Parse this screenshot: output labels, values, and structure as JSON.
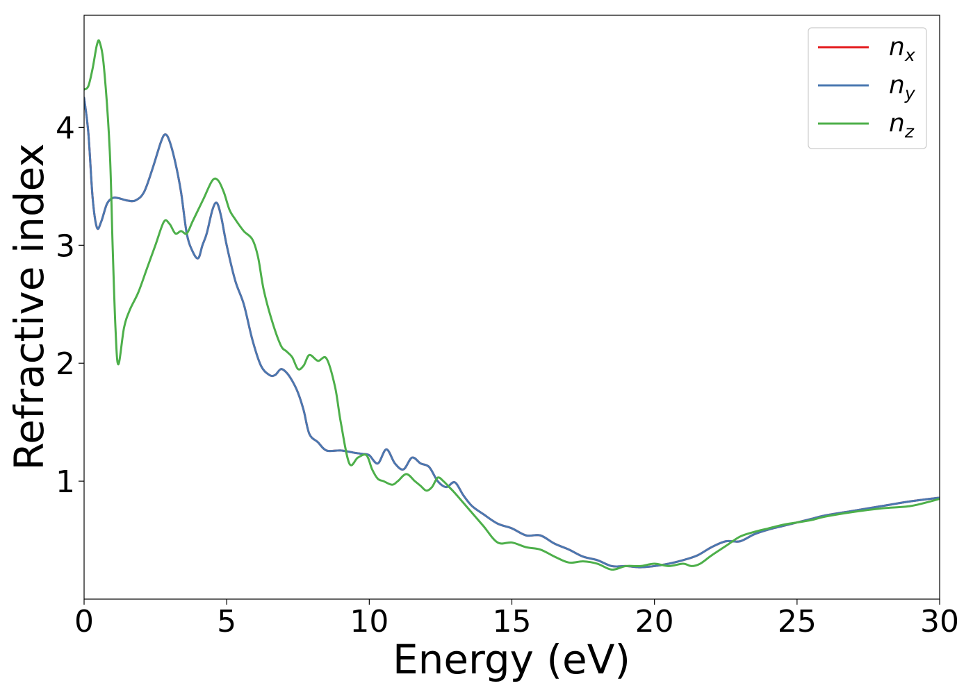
{
  "chart_data": {
    "type": "line",
    "title": "",
    "xlabel": "Energy (eV)",
    "ylabel": "Refractive index",
    "xlim": [
      0,
      30
    ],
    "ylim": [
      0.0,
      4.95
    ],
    "xticks": [
      0,
      5,
      10,
      15,
      20,
      25,
      30
    ],
    "xtick_labels": [
      "0",
      "5",
      "10",
      "15",
      "20",
      "25",
      "30"
    ],
    "yticks": [
      1,
      2,
      3,
      4
    ],
    "ytick_labels": [
      "1",
      "2",
      "3",
      "4"
    ],
    "grid": false,
    "legend_position": "top-right",
    "series": [
      {
        "name": "n_x",
        "legend_main": "n",
        "legend_sub": "x",
        "color": "#e41a1c",
        "x": [
          0,
          0.15,
          0.3,
          0.45,
          0.6,
          0.8,
          1.0,
          1.2,
          1.5,
          1.8,
          2.1,
          2.4,
          2.7,
          2.85,
          3.0,
          3.2,
          3.4,
          3.6,
          3.8,
          4.0,
          4.15,
          4.3,
          4.5,
          4.65,
          4.8,
          5.0,
          5.3,
          5.6,
          5.9,
          6.2,
          6.5,
          6.7,
          6.9,
          7.1,
          7.3,
          7.5,
          7.7,
          7.9,
          8.2,
          8.5,
          9.0,
          9.5,
          9.8,
          10.0,
          10.3,
          10.6,
          10.9,
          11.2,
          11.5,
          11.8,
          12.1,
          12.4,
          12.7,
          13.0,
          13.3,
          13.6,
          14.0,
          14.5,
          15.0,
          15.5,
          16.0,
          16.5,
          17.0,
          17.5,
          18.0,
          18.5,
          19.0,
          19.5,
          20.0,
          20.5,
          21.0,
          21.5,
          22.0,
          22.5,
          23.0,
          23.5,
          24.0,
          24.5,
          25.0,
          25.5,
          26.0,
          27.0,
          28.0,
          29.0,
          30.0
        ],
        "y": [
          4.25,
          3.95,
          3.4,
          3.15,
          3.2,
          3.35,
          3.4,
          3.4,
          3.38,
          3.38,
          3.45,
          3.65,
          3.88,
          3.94,
          3.88,
          3.7,
          3.45,
          3.1,
          2.95,
          2.89,
          3.0,
          3.1,
          3.3,
          3.36,
          3.25,
          3.0,
          2.7,
          2.5,
          2.2,
          1.98,
          1.9,
          1.9,
          1.95,
          1.92,
          1.85,
          1.75,
          1.6,
          1.4,
          1.33,
          1.26,
          1.26,
          1.24,
          1.23,
          1.22,
          1.15,
          1.27,
          1.15,
          1.1,
          1.2,
          1.15,
          1.12,
          1.0,
          0.95,
          0.99,
          0.88,
          0.79,
          0.72,
          0.64,
          0.6,
          0.54,
          0.54,
          0.47,
          0.42,
          0.36,
          0.33,
          0.28,
          0.28,
          0.27,
          0.28,
          0.3,
          0.33,
          0.37,
          0.44,
          0.49,
          0.49,
          0.55,
          0.59,
          0.62,
          0.65,
          0.68,
          0.71,
          0.75,
          0.79,
          0.83,
          0.86
        ]
      },
      {
        "name": "n_y",
        "legend_main": "n",
        "legend_sub": "y",
        "color": "#4a78b0",
        "x": [
          0,
          0.15,
          0.3,
          0.45,
          0.6,
          0.8,
          1.0,
          1.2,
          1.5,
          1.8,
          2.1,
          2.4,
          2.7,
          2.85,
          3.0,
          3.2,
          3.4,
          3.6,
          3.8,
          4.0,
          4.15,
          4.3,
          4.5,
          4.65,
          4.8,
          5.0,
          5.3,
          5.6,
          5.9,
          6.2,
          6.5,
          6.7,
          6.9,
          7.1,
          7.3,
          7.5,
          7.7,
          7.9,
          8.2,
          8.5,
          9.0,
          9.5,
          9.8,
          10.0,
          10.3,
          10.6,
          10.9,
          11.2,
          11.5,
          11.8,
          12.1,
          12.4,
          12.7,
          13.0,
          13.3,
          13.6,
          14.0,
          14.5,
          15.0,
          15.5,
          16.0,
          16.5,
          17.0,
          17.5,
          18.0,
          18.5,
          19.0,
          19.5,
          20.0,
          20.5,
          21.0,
          21.5,
          22.0,
          22.5,
          23.0,
          23.5,
          24.0,
          24.5,
          25.0,
          25.5,
          26.0,
          27.0,
          28.0,
          29.0,
          30.0
        ],
        "y": [
          4.25,
          3.95,
          3.4,
          3.15,
          3.2,
          3.35,
          3.4,
          3.4,
          3.38,
          3.38,
          3.45,
          3.65,
          3.88,
          3.94,
          3.88,
          3.7,
          3.45,
          3.1,
          2.95,
          2.89,
          3.0,
          3.1,
          3.3,
          3.36,
          3.25,
          3.0,
          2.7,
          2.5,
          2.2,
          1.98,
          1.9,
          1.9,
          1.95,
          1.92,
          1.85,
          1.75,
          1.6,
          1.4,
          1.33,
          1.26,
          1.26,
          1.24,
          1.23,
          1.22,
          1.15,
          1.27,
          1.15,
          1.1,
          1.2,
          1.15,
          1.12,
          1.0,
          0.95,
          0.99,
          0.88,
          0.79,
          0.72,
          0.64,
          0.6,
          0.54,
          0.54,
          0.47,
          0.42,
          0.36,
          0.33,
          0.28,
          0.28,
          0.27,
          0.28,
          0.3,
          0.33,
          0.37,
          0.44,
          0.49,
          0.49,
          0.55,
          0.59,
          0.62,
          0.65,
          0.68,
          0.71,
          0.75,
          0.79,
          0.83,
          0.86
        ]
      },
      {
        "name": "n_z",
        "legend_main": "n",
        "legend_sub": "z",
        "color": "#4daf4a",
        "x": [
          0,
          0.15,
          0.3,
          0.45,
          0.55,
          0.7,
          0.9,
          1.0,
          1.1,
          1.2,
          1.4,
          1.6,
          1.9,
          2.2,
          2.5,
          2.8,
          3.0,
          3.2,
          3.4,
          3.6,
          3.8,
          4.0,
          4.2,
          4.5,
          4.7,
          4.9,
          5.1,
          5.3,
          5.6,
          5.9,
          6.1,
          6.3,
          6.6,
          6.9,
          7.1,
          7.3,
          7.5,
          7.7,
          7.9,
          8.2,
          8.5,
          8.8,
          9.0,
          9.3,
          9.6,
          9.9,
          10.1,
          10.3,
          10.5,
          10.8,
          11.0,
          11.3,
          11.6,
          11.8,
          12.0,
          12.2,
          12.4,
          12.6,
          12.8,
          13.0,
          13.5,
          14.0,
          14.5,
          15.0,
          15.5,
          16.0,
          16.5,
          17.0,
          17.5,
          18.0,
          18.5,
          19.0,
          19.5,
          20.0,
          20.5,
          21.0,
          21.3,
          21.6,
          22.0,
          22.5,
          23.0,
          23.5,
          24.0,
          24.5,
          25.0,
          25.5,
          26.0,
          27.0,
          28.0,
          29.0,
          30.0
        ],
        "y": [
          4.32,
          4.35,
          4.5,
          4.7,
          4.72,
          4.5,
          3.8,
          3.0,
          2.3,
          1.99,
          2.3,
          2.45,
          2.6,
          2.8,
          3.0,
          3.2,
          3.18,
          3.1,
          3.12,
          3.1,
          3.2,
          3.3,
          3.4,
          3.55,
          3.55,
          3.45,
          3.3,
          3.22,
          3.12,
          3.05,
          2.9,
          2.62,
          2.35,
          2.15,
          2.1,
          2.05,
          1.95,
          1.98,
          2.07,
          2.02,
          2.04,
          1.8,
          1.5,
          1.15,
          1.2,
          1.22,
          1.1,
          1.02,
          1.0,
          0.97,
          1.0,
          1.06,
          1.0,
          0.96,
          0.92,
          0.95,
          1.03,
          1.0,
          0.95,
          0.9,
          0.76,
          0.62,
          0.48,
          0.48,
          0.44,
          0.42,
          0.36,
          0.31,
          0.32,
          0.3,
          0.25,
          0.28,
          0.28,
          0.3,
          0.28,
          0.3,
          0.28,
          0.3,
          0.37,
          0.45,
          0.53,
          0.57,
          0.6,
          0.63,
          0.65,
          0.67,
          0.7,
          0.74,
          0.77,
          0.79,
          0.85
        ]
      }
    ]
  }
}
